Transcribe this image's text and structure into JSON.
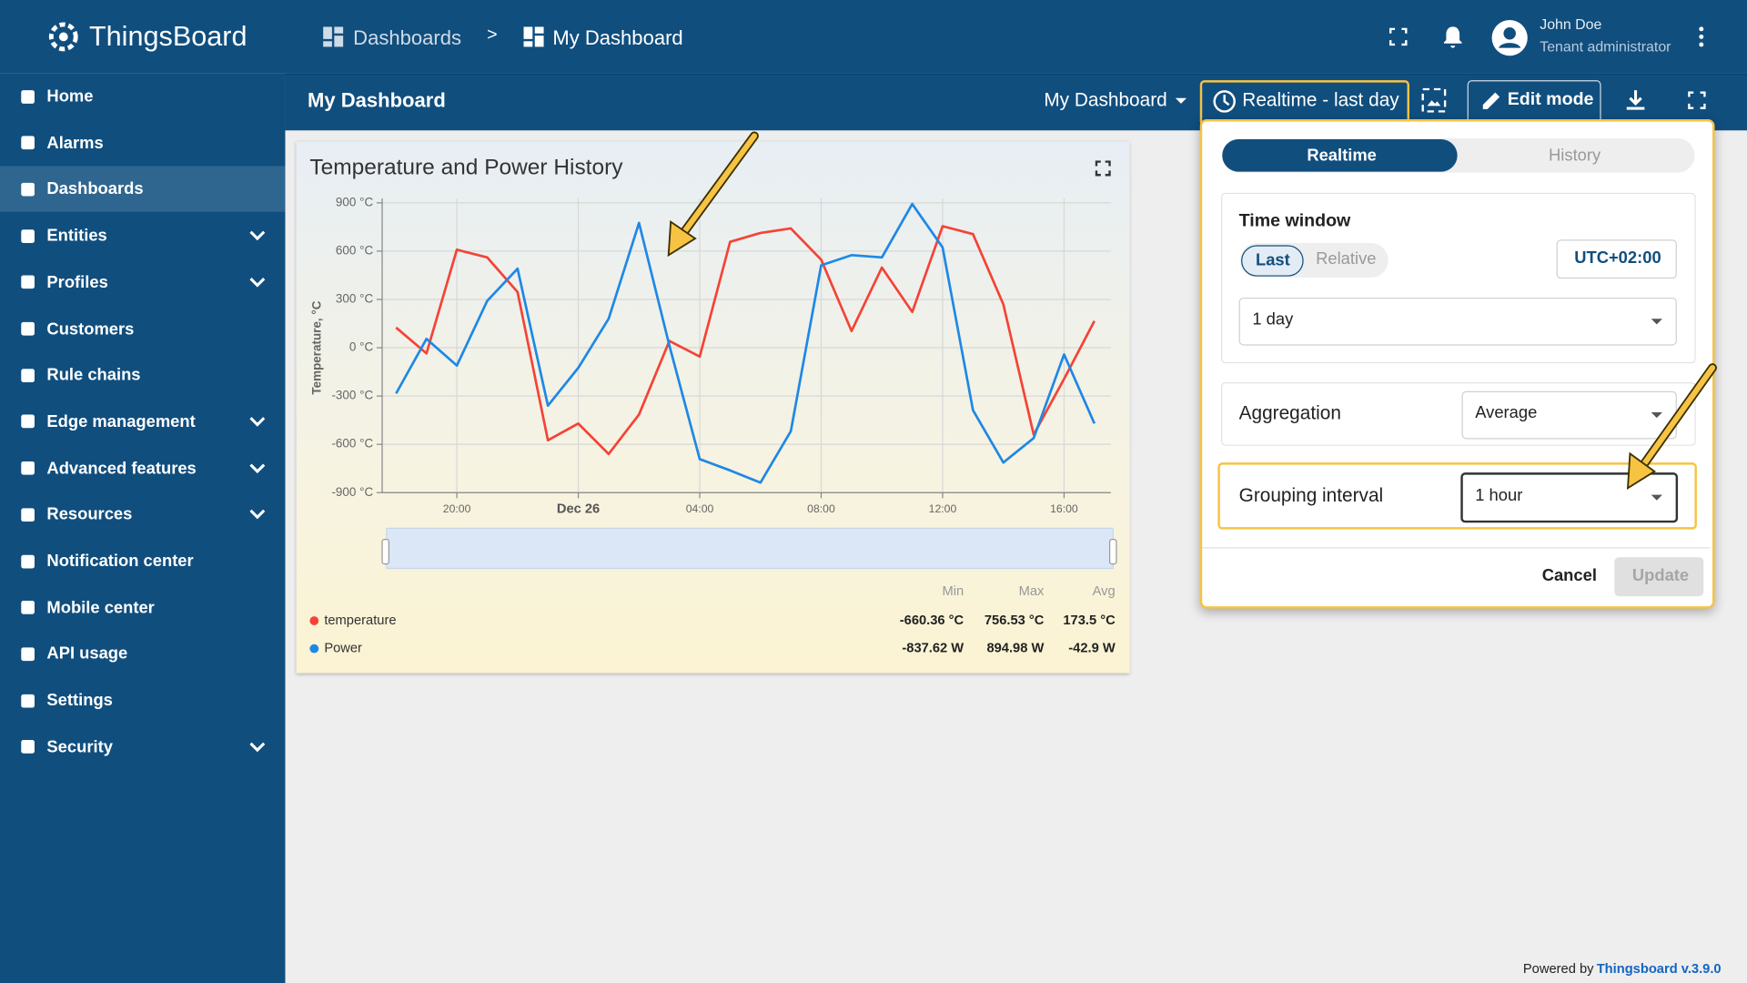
{
  "header": {
    "logo": "ThingsBoard",
    "breadcrumb": [
      "Dashboards",
      "My Dashboard"
    ],
    "separator": ">",
    "user_name": "John Doe",
    "user_role": "Tenant administrator"
  },
  "sidebar": {
    "items": [
      "Home",
      "Alarms",
      "Dashboards",
      "Entities",
      "Profiles",
      "Customers",
      "Rule chains",
      "Edge management",
      "Advanced features",
      "Resources",
      "Notification center",
      "Mobile center",
      "API usage",
      "Settings",
      "Security"
    ]
  },
  "toolbar": {
    "title": "My Dashboard",
    "dashboard_select": "My Dashboard",
    "timewindow": "Realtime - last day",
    "edit_mode": "Edit mode"
  },
  "chart_data": {
    "type": "line",
    "title": "Temperature and Power History",
    "y_label": "Temperature, °C",
    "x": [
      -6,
      -5,
      -4,
      -3,
      -2,
      -1,
      0,
      1,
      2,
      3,
      4,
      5,
      6,
      7,
      8,
      9,
      10,
      11,
      12,
      13,
      14,
      15,
      16,
      17
    ],
    "xlim": [
      -6.46,
      17.54
    ],
    "xticks": [
      {
        "value": -4,
        "label": "20:00"
      },
      {
        "value": 0,
        "label": "Dec 26"
      },
      {
        "value": 4,
        "label": "04:00"
      },
      {
        "value": 8,
        "label": "08:00"
      },
      {
        "value": 12,
        "label": "12:00"
      },
      {
        "value": 16,
        "label": "16:00"
      }
    ],
    "ylim": [
      -900,
      900
    ],
    "yticks": [
      {
        "value": -900,
        "label": "-900 °C"
      },
      {
        "value": -600,
        "label": "-600 °C"
      },
      {
        "value": -300,
        "label": "-300 °C"
      },
      {
        "value": 0,
        "label": "0 °C"
      },
      {
        "value": 300,
        "label": "300 °C"
      },
      {
        "value": 600,
        "label": "600 °C"
      },
      {
        "value": 900,
        "label": "900 °C"
      }
    ],
    "grid": true,
    "series": [
      {
        "name": "temperature",
        "color": "#f44336",
        "values": [
          125,
          -35,
          609,
          561,
          346,
          -575,
          -471,
          -660,
          -415,
          42,
          -55,
          658,
          713,
          741,
          547,
          104,
          498,
          222,
          755,
          706,
          270,
          -540,
          -194,
          166
        ]
      },
      {
        "name": "Power",
        "color": "#1e88e5",
        "values": [
          -284,
          55,
          -111,
          291,
          491,
          -360,
          -125,
          180,
          775,
          14,
          -692,
          -762,
          -838,
          -519,
          512,
          575,
          561,
          893,
          623,
          -388,
          -713,
          -561,
          -42,
          -471
        ]
      }
    ],
    "stats": {
      "headers": [
        "Min",
        "Max",
        "Avg"
      ],
      "rows": [
        [
          "-660.36 °C",
          "756.53 °C",
          "173.5 °C"
        ],
        [
          "-837.62 W",
          "894.98 W",
          "-42.9 W"
        ]
      ]
    }
  },
  "timewindow_panel": {
    "tabs": [
      "Realtime",
      "History"
    ],
    "time_window_label": "Time window",
    "modes": [
      "Last",
      "Relative"
    ],
    "timezone": "UTC+02:00",
    "window_value": "1 day",
    "aggregation_label": "Aggregation",
    "aggregation_value": "Average",
    "grouping_label": "Grouping interval",
    "grouping_value": "1 hour",
    "cancel": "Cancel",
    "update": "Update"
  },
  "footer": {
    "text": "Powered by",
    "link": "Thingsboard v.3.9.0"
  }
}
